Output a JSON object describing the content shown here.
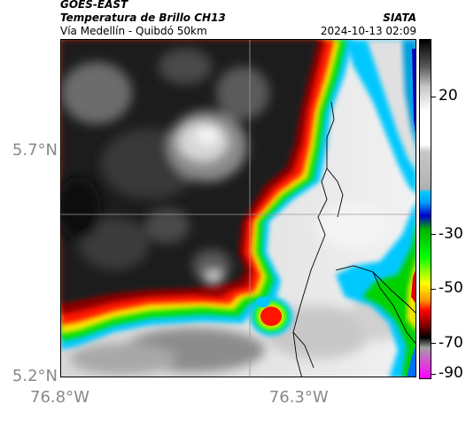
{
  "header": {
    "satellite": "GOES-EAST",
    "product": "Temperatura de Brillo CH13",
    "region": "Vía Medellín - Quibdó 50km",
    "agency": "SIATA",
    "datetime": "2024-10-13 02:09"
  },
  "map": {
    "lat_ticks": [
      {
        "value": 5.7,
        "label": "5.7°N"
      },
      {
        "value": 5.2,
        "label": "5.2°N"
      }
    ],
    "lon_ticks": [
      {
        "value": -76.8,
        "label": "76.8°W"
      },
      {
        "value": -76.3,
        "label": "76.3°W"
      }
    ],
    "gridlines": true
  },
  "colorbar": {
    "ticks": [
      {
        "value": 20,
        "label": "20"
      },
      {
        "value": -30,
        "label": "-30"
      },
      {
        "value": -50,
        "label": "-50"
      },
      {
        "value": -70,
        "label": "-70"
      },
      {
        "value": -90,
        "label": "-90"
      }
    ],
    "colors": [
      "#000000",
      "#ffffff",
      "#00c8ff",
      "#0000c8",
      "#00ff00",
      "#ffff00",
      "#ff0000",
      "#000000",
      "#ff00ff"
    ]
  }
}
